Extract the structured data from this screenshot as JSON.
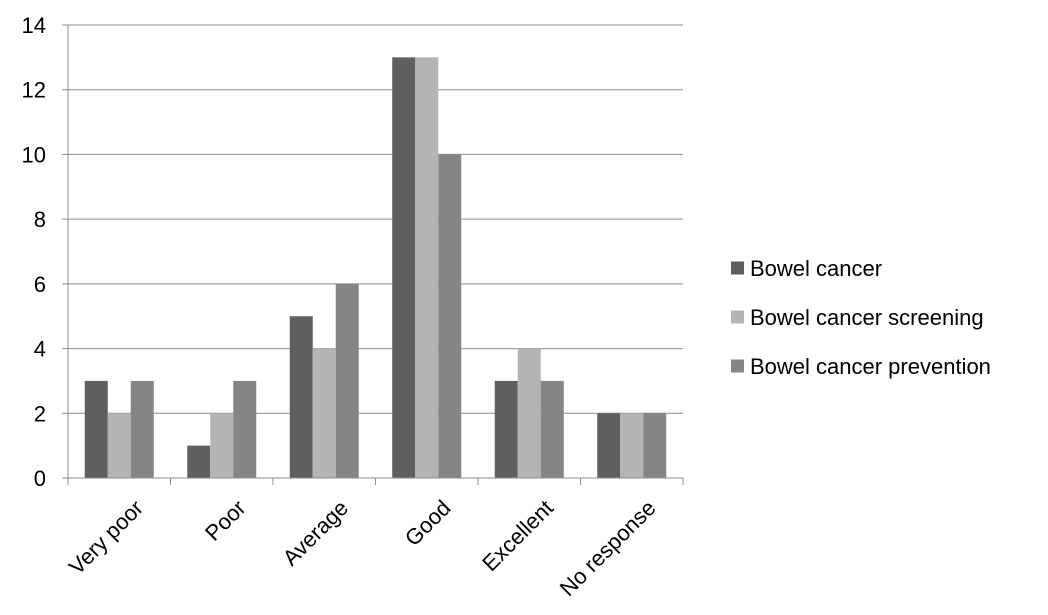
{
  "chart_data": {
    "type": "bar",
    "title": "",
    "xlabel": "",
    "ylabel": "",
    "categories": [
      "Very poor",
      "Poor",
      "Average",
      "Good",
      "Excellent",
      "No response"
    ],
    "series": [
      {
        "name": "Bowel cancer",
        "color": "#5f5f5f",
        "values": [
          3,
          1,
          5,
          13,
          3,
          2
        ]
      },
      {
        "name": "Bowel cancer screening",
        "color": "#b4b4b4",
        "values": [
          2,
          2,
          4,
          13,
          4,
          2
        ]
      },
      {
        "name": "Bowel cancer prevention",
        "color": "#858585",
        "values": [
          3,
          3,
          6,
          10,
          3,
          2
        ]
      }
    ],
    "ylim": [
      0,
      14
    ],
    "yticks": [
      0,
      2,
      4,
      6,
      8,
      10,
      12,
      14
    ],
    "grid": true,
    "legend_position": "right"
  }
}
